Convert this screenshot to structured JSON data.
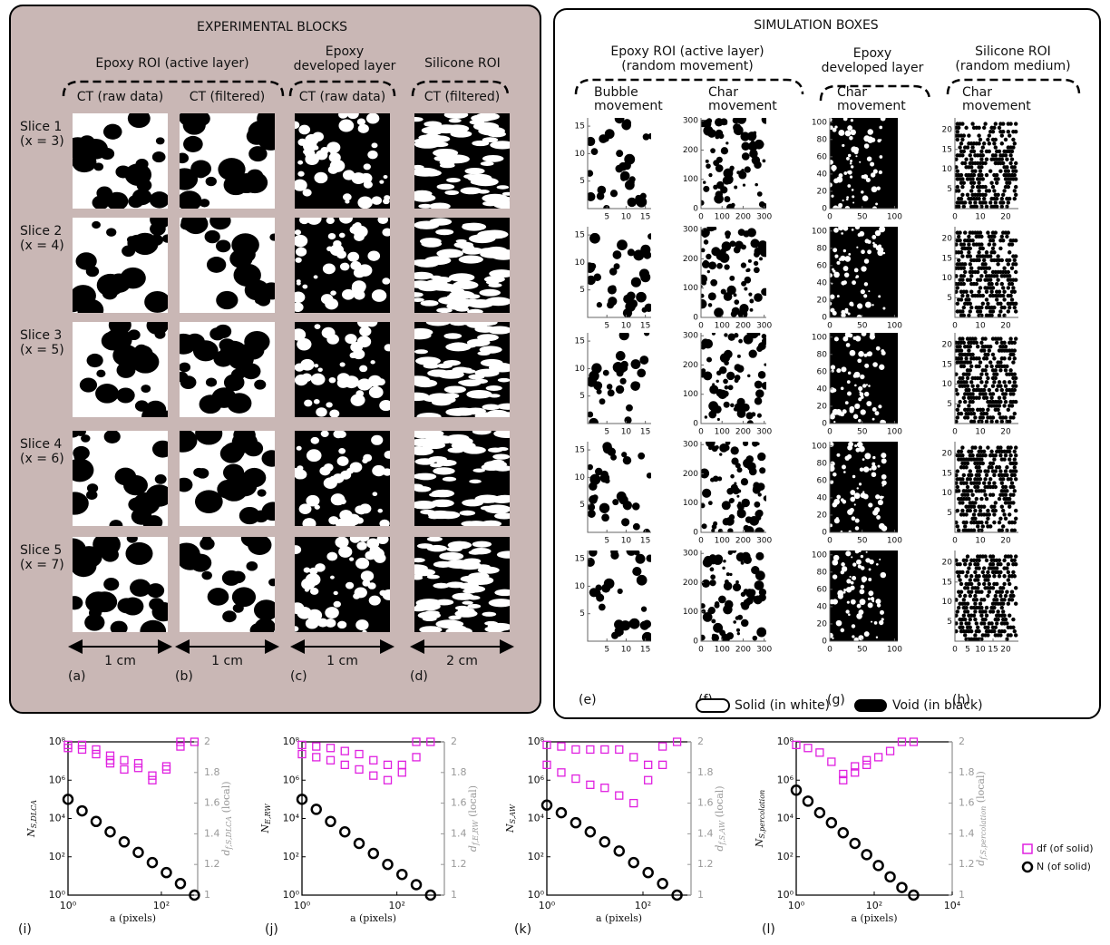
{
  "experimental": {
    "title": "EXPERIMENTAL BLOCKS",
    "groups": [
      {
        "lines": [
          "Epoxy ROI (active layer)"
        ]
      },
      {
        "lines": [
          "Epoxy",
          "developed layer"
        ]
      },
      {
        "lines": [
          "Silicone ROI"
        ]
      }
    ],
    "columns": [
      {
        "header": "CT (raw data)",
        "scale": "1 cm",
        "label": "(a)"
      },
      {
        "header": "CT (filtered)",
        "scale": "1 cm",
        "label": "(b)"
      },
      {
        "header": "CT (raw data)",
        "scale": "1 cm",
        "label": "(c)"
      },
      {
        "header": "CT (filtered)",
        "scale": "2 cm",
        "label": "(d)"
      }
    ],
    "rows": [
      {
        "lines": [
          "Slice 1",
          "(x = 3)"
        ]
      },
      {
        "lines": [
          "Slice 2",
          "(x = 4)"
        ]
      },
      {
        "lines": [
          "Slice 3",
          "(x = 5)"
        ]
      },
      {
        "lines": [
          "Slice 4",
          "(x = 6)"
        ]
      },
      {
        "lines": [
          "Slice 5",
          "(x = 7)"
        ]
      }
    ]
  },
  "simulation": {
    "title": "SIMULATION BOXES",
    "groups": [
      {
        "lines": [
          "Epoxy ROI (active layer)",
          "(random movement)"
        ]
      },
      {
        "lines": [
          "Epoxy",
          "developed layer"
        ]
      },
      {
        "lines": [
          "Silicone ROI",
          "(random medium)"
        ]
      }
    ],
    "columns": [
      {
        "header": [
          "Bubble",
          "movement"
        ],
        "label": "(e)",
        "xlim": [
          0,
          16.5
        ],
        "ylim": [
          0,
          16.5
        ],
        "xticks": [
          5,
          10,
          15
        ],
        "yticks": [
          5,
          10,
          15
        ]
      },
      {
        "header": [
          "Char",
          "movement"
        ],
        "label": "(f)",
        "xlim": [
          0,
          310
        ],
        "ylim": [
          0,
          310
        ],
        "xticks": [
          0,
          100,
          200,
          300
        ],
        "yticks": [
          0,
          100,
          200,
          300
        ]
      },
      {
        "header": [
          "Char",
          "movement"
        ],
        "label": "(g)",
        "xlim": [
          0,
          105
        ],
        "ylim": [
          0,
          105
        ],
        "xticks": [
          0,
          50,
          100
        ],
        "yticks": [
          0,
          20,
          40,
          60,
          80,
          100
        ]
      },
      {
        "header": [
          "Char",
          "movement"
        ],
        "label": "(h)",
        "xlim": [
          0,
          25
        ],
        "ylim": [
          0,
          23
        ],
        "xticks": [
          0,
          10,
          20
        ],
        "xticks_last": [
          0,
          5,
          10,
          15,
          20
        ],
        "yticks": [
          5,
          10,
          15,
          20
        ]
      }
    ]
  },
  "legend": {
    "solid": "Solid (in white)",
    "void": "Void (in black)"
  },
  "chart_data": [
    {
      "type": "scatter",
      "label": "(i)",
      "xlabel": "a (pixels)",
      "ylabel": "N",
      "ylabel_sub": "S,DLCA",
      "y2label": "d",
      "y2label_sub": "f,S,DLCA",
      "y2label_suffix": " (local)",
      "xlog": true,
      "ylog": true,
      "xlim": [
        1,
        600
      ],
      "ylim": [
        1,
        100000000
      ],
      "y2lim": [
        1,
        2
      ],
      "xticks": [
        {
          "value": 1,
          "label": "10⁰"
        },
        {
          "value": 100,
          "label": "10²"
        }
      ],
      "yticks": [
        {
          "value": 1,
          "label": "10⁰"
        },
        {
          "value": 100,
          "label": "10²"
        },
        {
          "value": 10000,
          "label": "10⁴"
        },
        {
          "value": 1000000,
          "label": "10⁶"
        },
        {
          "value": 100000000,
          "label": "10⁸"
        }
      ],
      "y2ticks": [
        1,
        1.2,
        1.4,
        1.6,
        1.8,
        2
      ],
      "series": [
        {
          "name": "df (of solid)",
          "color": "#e020e0",
          "marker": "square",
          "axis": "y2",
          "x": [
            1,
            1,
            2,
            2,
            4,
            4,
            8,
            8,
            8,
            16,
            16,
            32,
            32,
            64,
            64,
            128,
            128,
            256,
            256,
            512
          ],
          "values": [
            1.96,
            1.98,
            1.95,
            1.98,
            1.92,
            1.95,
            1.86,
            1.88,
            1.91,
            1.82,
            1.88,
            1.83,
            1.86,
            1.75,
            1.78,
            1.82,
            1.84,
            1.97,
            2,
            2
          ]
        },
        {
          "name": "N (of solid)",
          "color": "#000000",
          "marker": "circle",
          "x": [
            1,
            2,
            4,
            8,
            16,
            32,
            64,
            128,
            256,
            512
          ],
          "values": [
            100000,
            25000,
            7000,
            2000,
            600,
            170,
            50,
            15,
            4,
            1
          ]
        }
      ]
    },
    {
      "type": "scatter",
      "label": "(j)",
      "xlabel": "a (pixels)",
      "ylabel": "N",
      "ylabel_sub": "E,RW",
      "y2label": "d",
      "y2label_sub": "f,E,RW",
      "y2label_suffix": " (local)",
      "xlog": true,
      "ylog": true,
      "xlim": [
        1,
        1000
      ],
      "ylim": [
        1,
        100000000
      ],
      "y2lim": [
        1,
        2
      ],
      "xticks": [
        {
          "value": 1,
          "label": "10⁰"
        },
        {
          "value": 100,
          "label": "10²"
        }
      ],
      "yticks": [
        {
          "value": 1,
          "label": "10⁰"
        },
        {
          "value": 100,
          "label": "10²"
        },
        {
          "value": 10000,
          "label": "10⁴"
        },
        {
          "value": 1000000,
          "label": "10⁶"
        },
        {
          "value": 100000000,
          "label": "10⁸"
        }
      ],
      "y2ticks": [
        1,
        1.2,
        1.4,
        1.6,
        1.8,
        2
      ],
      "series": [
        {
          "color": "#e020e0",
          "marker": "square",
          "axis": "y2",
          "x": [
            1,
            1,
            2,
            2,
            4,
            4,
            8,
            8,
            16,
            16,
            32,
            32,
            64,
            64,
            128,
            128,
            256,
            256,
            512
          ],
          "values": [
            1.92,
            1.98,
            1.9,
            1.97,
            1.88,
            1.96,
            1.85,
            1.94,
            1.82,
            1.92,
            1.78,
            1.88,
            1.75,
            1.85,
            1.8,
            1.85,
            1.9,
            2,
            2
          ]
        },
        {
          "color": "#000000",
          "marker": "circle",
          "x": [
            1,
            2,
            4,
            8,
            16,
            32,
            64,
            128,
            256,
            512
          ],
          "values": [
            100000,
            30000,
            7000,
            2000,
            500,
            150,
            40,
            12,
            3.5,
            1
          ]
        }
      ]
    },
    {
      "type": "scatter",
      "label": "(k)",
      "xlabel": "a (pixels)",
      "ylabel": "N",
      "ylabel_sub": "S,AW",
      "y2label": "d",
      "y2label_sub": "f,S,AW",
      "y2label_suffix": " (local)",
      "xlog": true,
      "ylog": true,
      "xlim": [
        1,
        1000
      ],
      "ylim": [
        1,
        100000000
      ],
      "y2lim": [
        1,
        2
      ],
      "xticks": [
        {
          "value": 1,
          "label": "10⁰"
        },
        {
          "value": 100,
          "label": "10²"
        }
      ],
      "yticks": [
        {
          "value": 1,
          "label": "10⁰"
        },
        {
          "value": 100,
          "label": "10²"
        },
        {
          "value": 10000,
          "label": "10⁴"
        },
        {
          "value": 1000000,
          "label": "10⁶"
        },
        {
          "value": 100000000,
          "label": "10⁸"
        }
      ],
      "y2ticks": [
        1,
        1.2,
        1.4,
        1.6,
        1.8,
        2
      ],
      "series": [
        {
          "color": "#e020e0",
          "marker": "square",
          "axis": "y2",
          "x": [
            1,
            1,
            2,
            2,
            4,
            4,
            8,
            8,
            16,
            16,
            32,
            32,
            64,
            64,
            128,
            128,
            256,
            256,
            512
          ],
          "values": [
            1.85,
            1.98,
            1.8,
            1.97,
            1.76,
            1.95,
            1.72,
            1.95,
            1.7,
            1.95,
            1.65,
            1.95,
            1.6,
            1.9,
            1.75,
            1.85,
            1.85,
            1.97,
            2
          ]
        },
        {
          "color": "#000000",
          "marker": "circle",
          "x": [
            1,
            2,
            4,
            8,
            16,
            32,
            64,
            128,
            256,
            512
          ],
          "values": [
            50000,
            20000,
            6000,
            2000,
            600,
            200,
            50,
            15,
            4,
            1
          ]
        }
      ]
    },
    {
      "type": "scatter",
      "label": "(l)",
      "xlabel": "a (pixels)",
      "ylabel": "N",
      "ylabel_sub": "S,percolation",
      "y2label": "d",
      "y2label_sub": "f,S,percolation",
      "y2label_suffix": " (local)",
      "xlog": true,
      "ylog": true,
      "xlim": [
        1,
        10000
      ],
      "ylim": [
        1,
        100000000
      ],
      "y2lim": [
        1,
        2
      ],
      "xticks": [
        {
          "value": 1,
          "label": "10⁰"
        },
        {
          "value": 100,
          "label": "10²"
        },
        {
          "value": 10000,
          "label": "10⁴"
        }
      ],
      "yticks": [
        {
          "value": 1,
          "label": "10⁰"
        },
        {
          "value": 100,
          "label": "10²"
        },
        {
          "value": 10000,
          "label": "10⁴"
        },
        {
          "value": 1000000,
          "label": "10⁶"
        },
        {
          "value": 100000000,
          "label": "10⁸"
        }
      ],
      "y2ticks": [
        1,
        1.2,
        1.4,
        1.6,
        1.8,
        2
      ],
      "series": [
        {
          "color": "#e020e0",
          "marker": "square",
          "axis": "y2",
          "x": [
            1,
            2,
            4,
            8,
            16,
            16,
            32,
            32,
            64,
            64,
            128,
            256,
            512,
            1024
          ],
          "values": [
            1.98,
            1.96,
            1.93,
            1.87,
            1.75,
            1.79,
            1.8,
            1.84,
            1.85,
            1.88,
            1.9,
            1.94,
            2,
            2
          ]
        },
        {
          "color": "#000000",
          "marker": "circle",
          "x": [
            1,
            2,
            4,
            8,
            16,
            32,
            64,
            128,
            256,
            512,
            1024
          ],
          "values": [
            300000,
            80000,
            20000,
            6000,
            1800,
            500,
            130,
            35,
            9,
            2.5,
            1
          ]
        }
      ]
    }
  ]
}
